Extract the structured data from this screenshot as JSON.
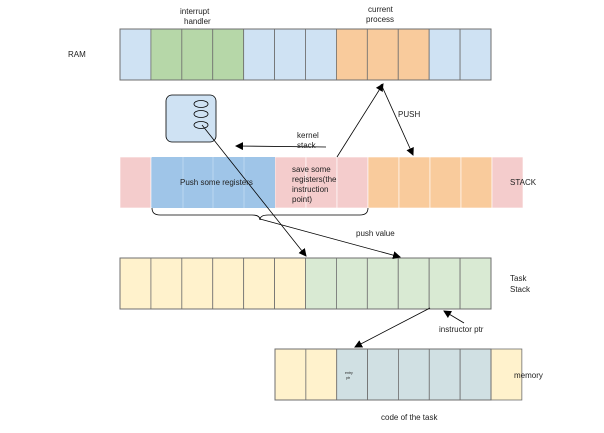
{
  "rows": {
    "ram": {
      "label": "RAM",
      "colors": [
        "#cfe2f3",
        "#b6d7a8",
        "#b6d7a8",
        "#b6d7a8",
        "#cfe2f3",
        "#cfe2f3",
        "#cfe2f3",
        "#f9cb9c",
        "#f9cb9c",
        "#f9cb9c",
        "#cfe2f3",
        "#cfe2f3"
      ]
    },
    "stack": {
      "label": "STACK",
      "colors": [
        "#f4cccc",
        "#9fc5e8",
        "#9fc5e8",
        "#9fc5e8",
        "#9fc5e8",
        "#f4cccc",
        "#f4cccc",
        "#f4cccc",
        "#f9cb9c",
        "#f9cb9c",
        "#f9cb9c",
        "#f9cb9c",
        "#f4cccc"
      ]
    },
    "task_stack": {
      "label_line1": "Task",
      "label_line2": "Stack",
      "colors": [
        "#fff2cc",
        "#fff2cc",
        "#fff2cc",
        "#fff2cc",
        "#fff2cc",
        "#fff2cc",
        "#d9ead3",
        "#d9ead3",
        "#d9ead3",
        "#d9ead3",
        "#d9ead3",
        "#d9ead3"
      ]
    },
    "memory": {
      "label": "memory",
      "colors": [
        "#fff2cc",
        "#fff2cc",
        "#d0e0e3",
        "#d0e0e3",
        "#d0e0e3",
        "#d0e0e3",
        "#d0e0e3",
        "#fff2cc"
      ]
    }
  },
  "labels": {
    "interrupt_handler_line1": "interrupt",
    "interrupt_handler_line2": "handler",
    "current_process_line1": "current",
    "current_process_line2": "process",
    "push": "PUSH",
    "kernel_stack_line1": "kernel",
    "kernel_stack_line2": "stack",
    "push_some_registers": "Push some registers",
    "save_registers_line1": "save some",
    "save_registers_line2": "registers(the",
    "save_registers_line3": "instruction",
    "save_registers_line4": "point)",
    "push_value": "push value",
    "instructor_ptr": "instructor ptr",
    "entry_ptr_line1": "entry",
    "entry_ptr_line2": "ptr",
    "code_of_the_task": "code of the task"
  },
  "colors": {
    "stroke": "#6f6f6f",
    "hairline": "#ffffff",
    "icon_fill": "#cfe2f3",
    "arrow": "#000000"
  }
}
